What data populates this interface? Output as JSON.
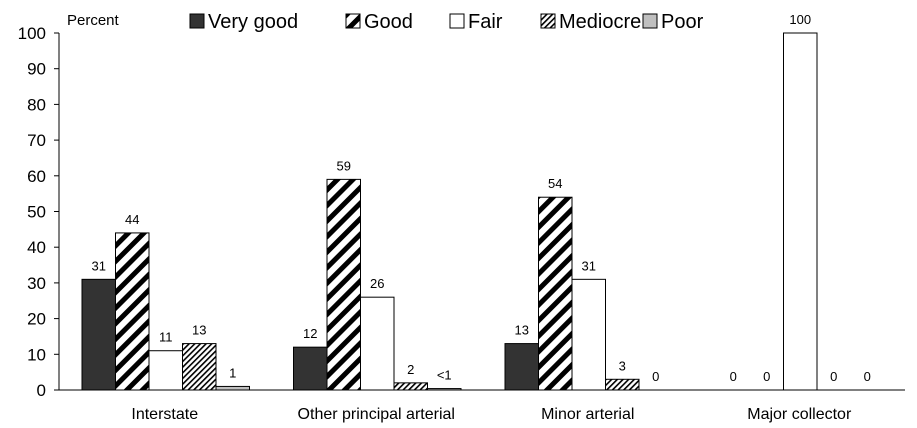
{
  "chart_data": {
    "type": "bar",
    "title": "",
    "xlabel": "",
    "ylabel": "Percent",
    "ylim": [
      0,
      100
    ],
    "yticks": [
      "0",
      "10",
      "20",
      "30",
      "40",
      "50",
      "60",
      "70",
      "80",
      "90",
      "100"
    ],
    "grid": false,
    "legend_position": "top",
    "categories": [
      "Interstate",
      "Other principal arterial",
      "Minor arterial",
      "Major collector"
    ],
    "series": [
      {
        "name": "Very good",
        "color": "#333333",
        "pattern": "solid-dark",
        "values": [
          31,
          12,
          13,
          0
        ],
        "labels": [
          "31",
          "12",
          "13",
          "0"
        ]
      },
      {
        "name": "Good",
        "color": "#000000",
        "pattern": "wide-diagonal-hatch",
        "values": [
          44,
          59,
          54,
          0
        ],
        "labels": [
          "44",
          "59",
          "54",
          "0"
        ]
      },
      {
        "name": "Fair",
        "color": "#ffffff",
        "pattern": "white",
        "values": [
          11,
          26,
          31,
          100
        ],
        "labels": [
          "11",
          "26",
          "31",
          "100"
        ]
      },
      {
        "name": "Mediocre",
        "color": "#000000",
        "pattern": "fine-diagonal-hatch",
        "values": [
          13,
          2,
          3,
          0
        ],
        "labels": [
          "13",
          "2",
          "3",
          "0"
        ]
      },
      {
        "name": "Poor",
        "color": "#bfbfbf",
        "pattern": "light-gray",
        "values": [
          1,
          0.4,
          0,
          0
        ],
        "labels": [
          "1",
          "<1",
          "0",
          "0"
        ]
      }
    ]
  }
}
